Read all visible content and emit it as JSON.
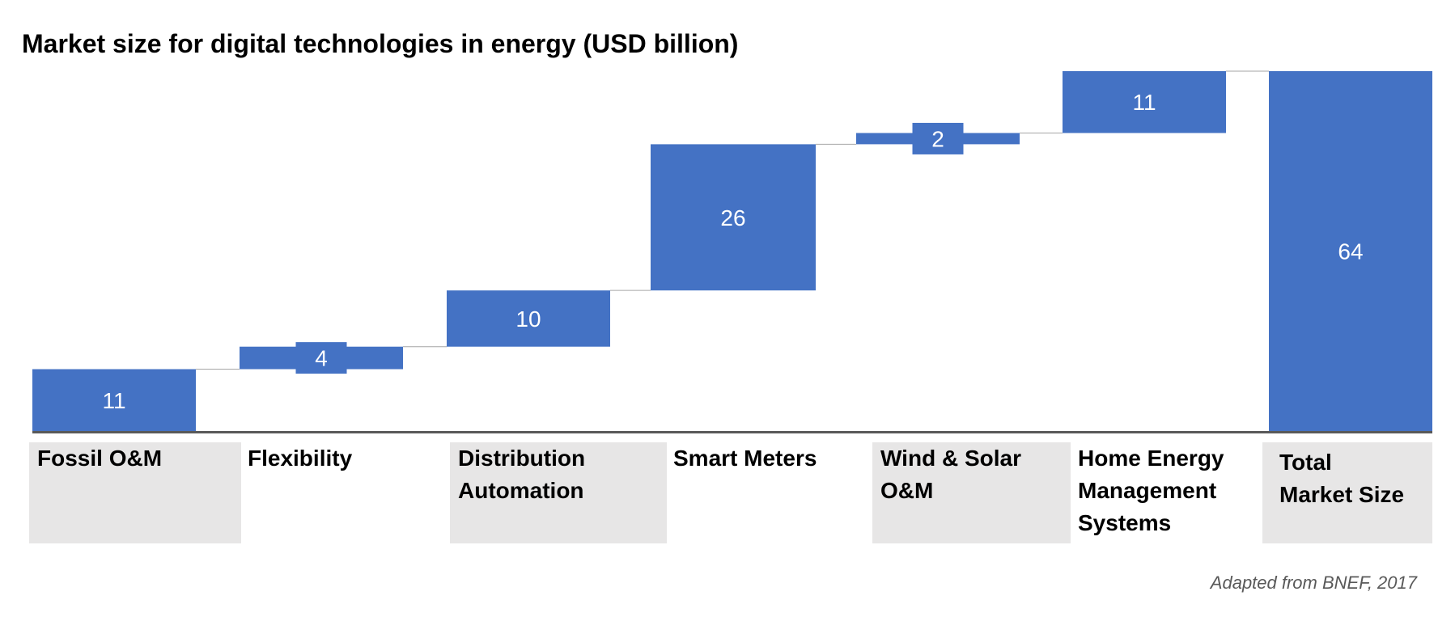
{
  "chart_data": {
    "type": "bar",
    "subtype": "waterfall",
    "title": "Market size for digital technologies in energy (USD billion)",
    "xlabel": "",
    "ylabel": "",
    "ylim": [
      0,
      64
    ],
    "grid": false,
    "legend": "none",
    "categories": [
      "Fossil O&M",
      "Flexibility",
      "Distribution Automation",
      "Smart Meters",
      "Wind & Solar O&M",
      "Home Energy Management Systems",
      "Total Market Size"
    ],
    "category_lines": [
      [
        "Fossil O&M"
      ],
      [
        "Flexibility"
      ],
      [
        "Distribution",
        "Automation"
      ],
      [
        "Smart Meters"
      ],
      [
        "Wind & Solar",
        "O&M"
      ],
      [
        "Home Energy",
        "Management",
        "Systems"
      ],
      [
        "Total",
        "Market Size"
      ]
    ],
    "category_box_shaded": [
      true,
      false,
      true,
      false,
      true,
      false,
      true
    ],
    "values": [
      11,
      4,
      10,
      26,
      2,
      11,
      64
    ],
    "value_labels": [
      "11",
      "4",
      "10",
      "26",
      "2",
      "11",
      "64"
    ],
    "is_total": [
      false,
      false,
      false,
      false,
      false,
      false,
      true
    ],
    "source": "Adapted from BNEF, 2017"
  },
  "colors": {
    "bar": "#4472c4",
    "label_on_bar": "#ffffff",
    "axis": "#595959",
    "connector": "#a6a6a6",
    "category_box": "#e7e6e6"
  }
}
